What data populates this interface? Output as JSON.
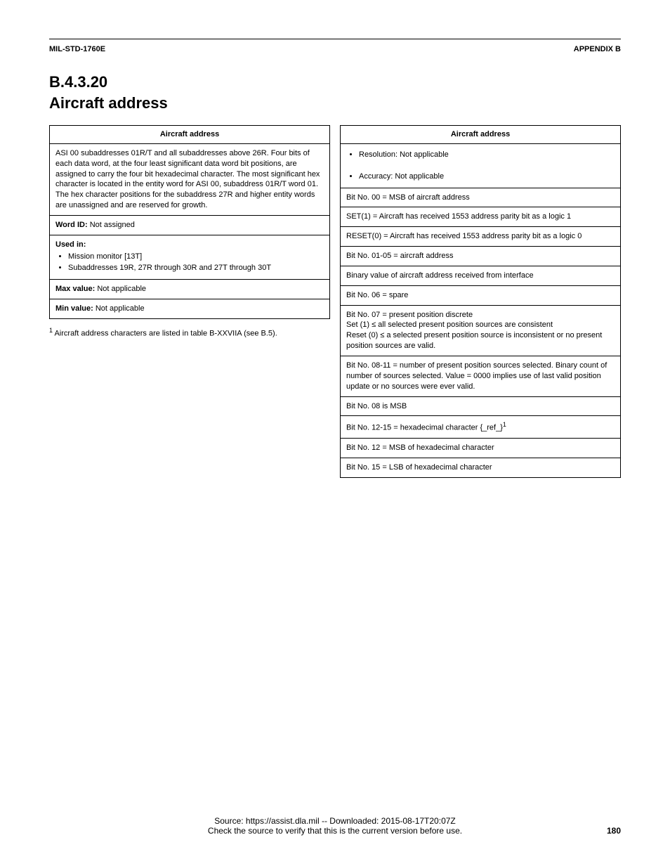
{
  "header": {
    "standard": "MIL-STD-1760E",
    "appendix": "APPENDIX B"
  },
  "section": {
    "number": "B.4.3.20",
    "title": "Aircraft address"
  },
  "table_left": {
    "title_header": "Aircraft address",
    "rows": [
      {
        "text": "ASI 00 subaddresses 01R/T and all subaddresses above 26R. Four bits of each data word, at the four least significant data word bit positions, are assigned to carry the four bit hexadecimal character. The most significant hex character is located in the entity word for ASI 00, subaddress 01R/T word 01. The hex character positions for the subaddress 27R and higher entity words are unassigned and are reserved for growth."
      },
      {
        "label": "Word ID:",
        "text": "Not assigned"
      },
      {
        "label": "Used in:",
        "bullets": [
          "Mission monitor [13T]",
          "Subaddresses 19R, 27R through 30R and 27T through 30T"
        ]
      },
      {
        "label": "Max value:",
        "text": "Not applicable"
      },
      {
        "label": "Min value:",
        "text": "Not applicable"
      }
    ],
    "footnote_marker": "1",
    "footnote_text": "  Aircraft address characters are listed in table B-XXVIIA (see B.5)."
  },
  "table_right": {
    "title_header": "Aircraft address",
    "rows": [
      {
        "bullets": [
          "Resolution: Not applicable"
        ]
      },
      {
        "bullets": [
          "Accuracy: Not applicable"
        ]
      },
      {
        "text": "Bit No. 00 = MSB of aircraft address"
      },
      {
        "text": "SET(1) = Aircraft has received 1553 address parity bit as a logic 1"
      },
      {
        "text": "RESET(0) = Aircraft has received 1553 address parity bit as a logic 0"
      },
      {
        "text": "Bit No. 01-05 = aircraft address"
      },
      {
        "text": "Binary value of aircraft address received from interface"
      },
      {
        "text": "Bit No. 06 = spare"
      },
      {
        "lines": [
          "Bit No. 07 = present position discrete",
          "Set (1) ≤ all selected present position sources are consistent",
          "Reset (0) ≤ a selected present position source is inconsistent or no present position sources are valid."
        ]
      },
      {
        "text": "Bit No. 08-11 = number of present position sources selected.  Binary count of number of sources selected.  Value = 0000 implies use of last valid position update or no sources were ever valid."
      },
      {
        "text": "Bit No. 08 is MSB"
      },
      {
        "text": "Bit No. 12-15 = hexadecimal character {_ref_}"
      },
      {
        "text": "Bit No. 12 = MSB of hexadecimal character"
      },
      {
        "text": "Bit No. 15 = LSB of hexadecimal character"
      }
    ],
    "ref_marker": "1"
  },
  "footer": {
    "page_number": "180",
    "source": "Source: https://assist.dla.mil -- Downloaded: 2015-08-17T20:07Z",
    "restriction": "Check the source to verify that this is the current version before use."
  }
}
